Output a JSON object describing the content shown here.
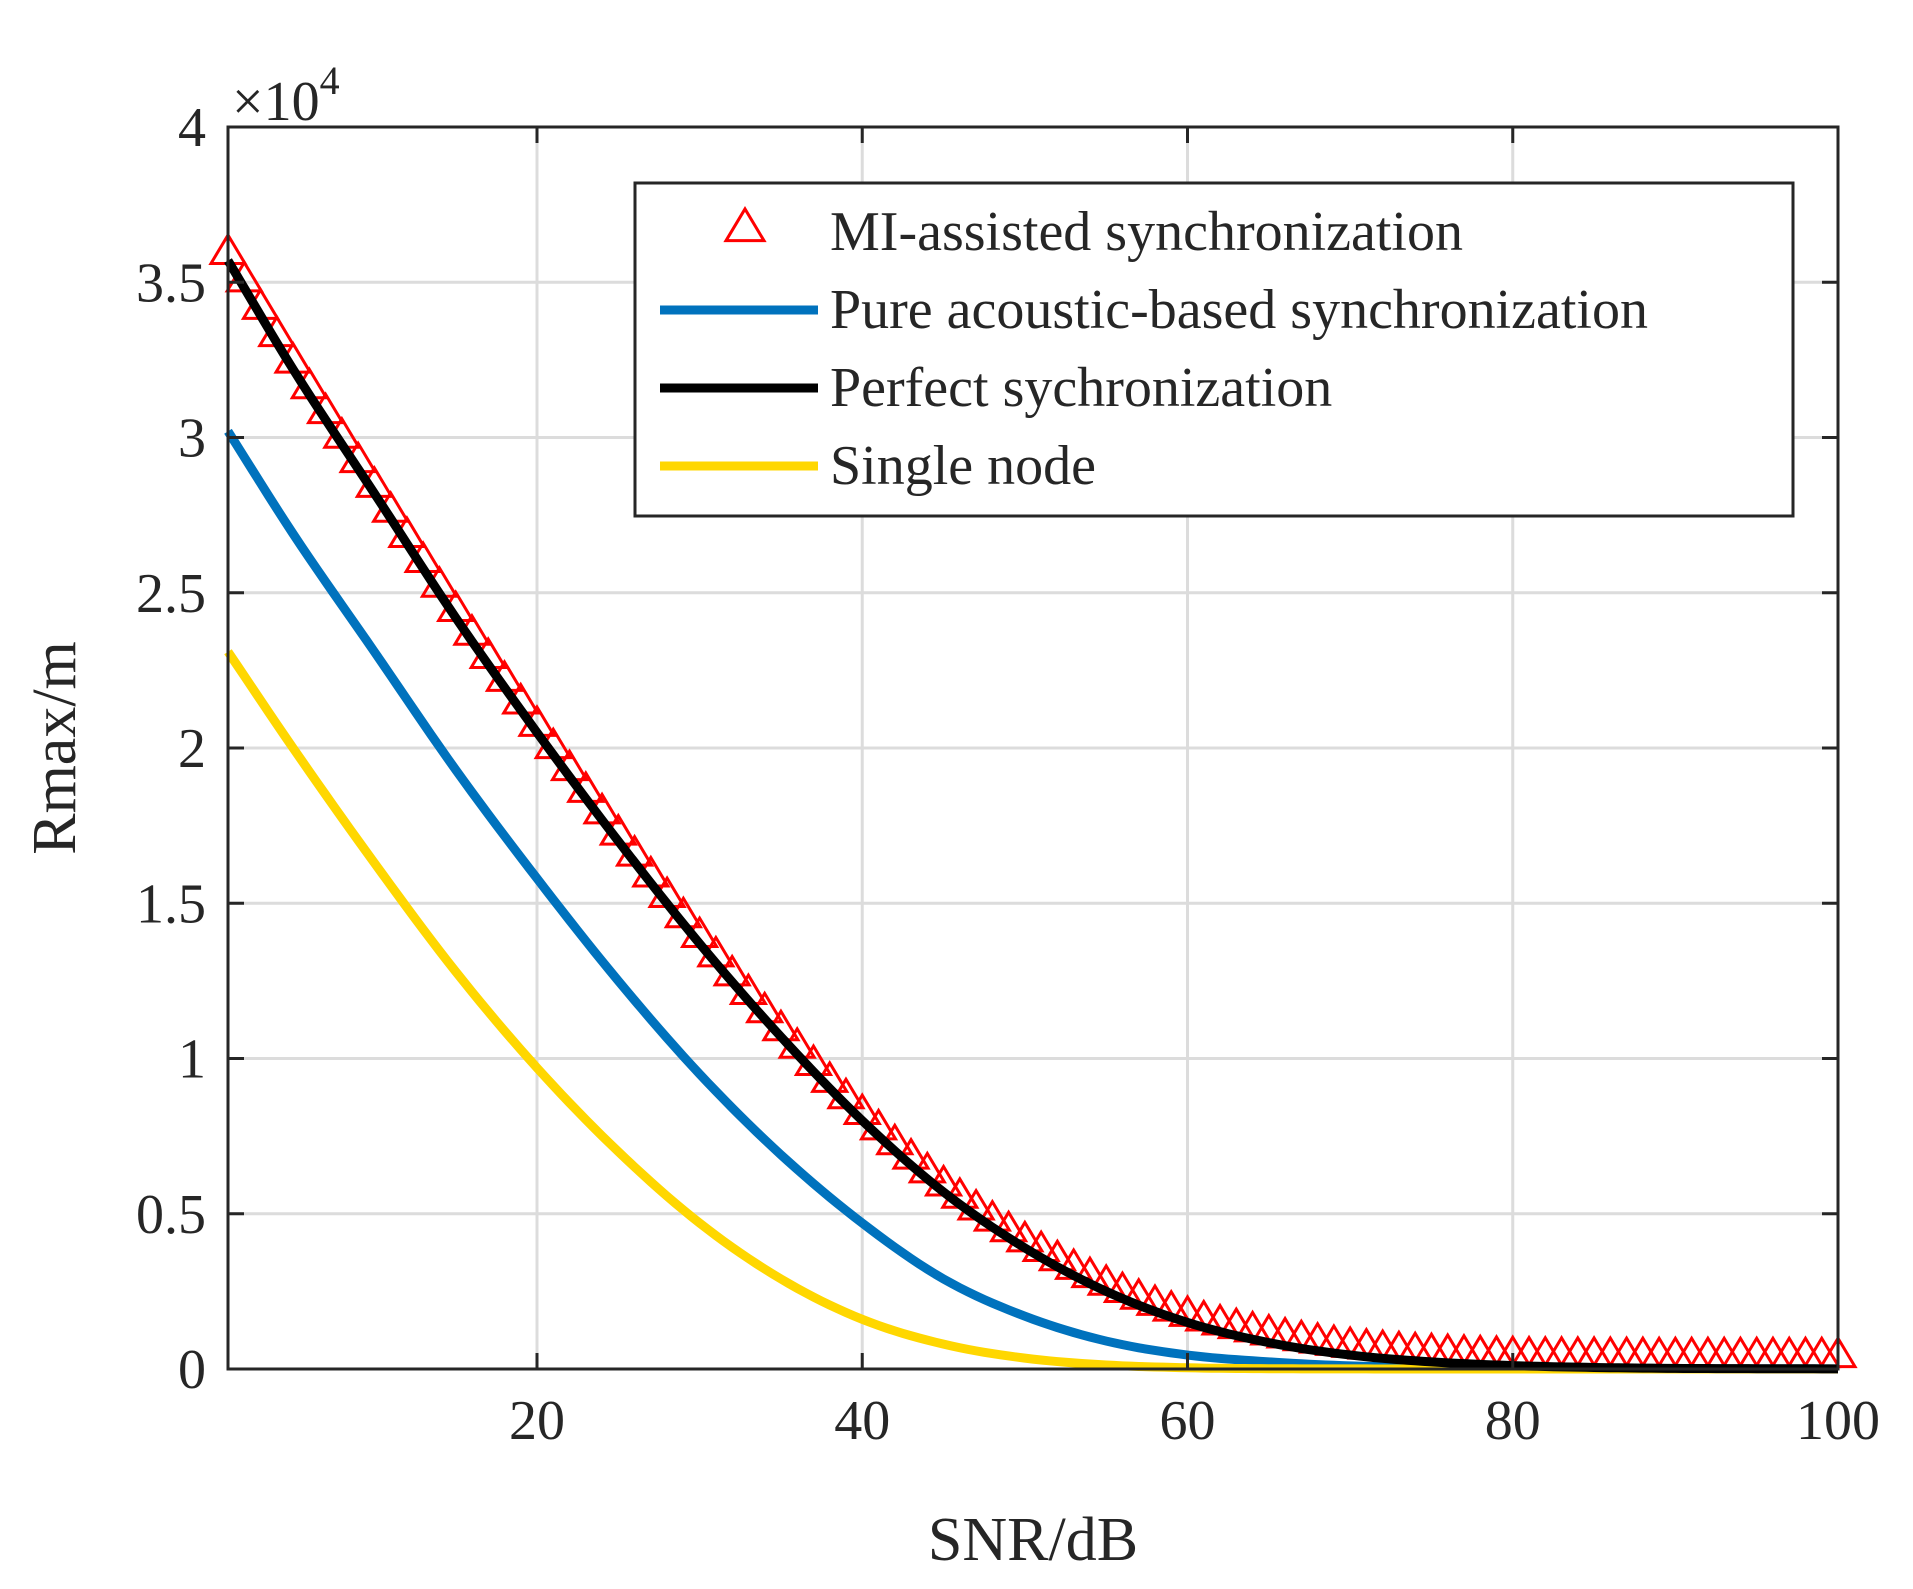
{
  "chart_data": {
    "type": "line",
    "title": "",
    "xlabel": "SNR/dB",
    "ylabel": "Rmax/m",
    "xlim": [
      1,
      100
    ],
    "ylim": [
      0,
      40000
    ],
    "y_exponent_label": "×10",
    "y_exponent_power": "4",
    "y_scale_factor": 10000,
    "x_ticks": [
      20,
      40,
      60,
      80,
      100
    ],
    "x_tick_labels": [
      "20",
      "40",
      "60",
      "80",
      "100"
    ],
    "y_ticks": [
      0,
      5000,
      10000,
      15000,
      20000,
      25000,
      30000,
      35000,
      40000
    ],
    "y_tick_labels": [
      "0",
      "0.5",
      "1",
      "1.5",
      "2",
      "2.5",
      "3",
      "3.5",
      "4"
    ],
    "grid": true,
    "legend_position": "top-right",
    "x": [
      1,
      5,
      10,
      15,
      20,
      25,
      30,
      35,
      40,
      45,
      50,
      55,
      60,
      65,
      70,
      75,
      80,
      85,
      90,
      95,
      100
    ],
    "series": [
      {
        "name": "MI-assisted synchronization",
        "style": "markers",
        "marker": "triangle",
        "color": "#ff0000",
        "values": [
          36000,
          32500,
          28500,
          24500,
          20800,
          17300,
          14000,
          11000,
          8300,
          6000,
          4200,
          2800,
          1800,
          1200,
          800,
          600,
          500,
          480,
          470,
          470,
          470
        ]
      },
      {
        "name": "Pure acoustic-based synchronization",
        "style": "line",
        "color": "#0072bd",
        "values": [
          30200,
          26900,
          23100,
          19300,
          15800,
          12500,
          9500,
          6900,
          4700,
          2900,
          1700,
          900,
          450,
          230,
          100,
          50,
          20,
          10,
          5,
          3,
          2
        ]
      },
      {
        "name": "Perfect sychronization",
        "style": "line",
        "color": "#000000",
        "values": [
          35700,
          32200,
          28200,
          24200,
          20500,
          17000,
          13700,
          10700,
          8000,
          5700,
          3900,
          2500,
          1500,
          850,
          450,
          230,
          110,
          50,
          20,
          10,
          5
        ]
      },
      {
        "name": "Single node",
        "style": "line",
        "color": "#ffd700",
        "values": [
          23100,
          20000,
          16300,
          12800,
          9700,
          7000,
          4700,
          2900,
          1600,
          800,
          350,
          130,
          40,
          10,
          3,
          1,
          0,
          0,
          0,
          0,
          0
        ]
      }
    ]
  }
}
